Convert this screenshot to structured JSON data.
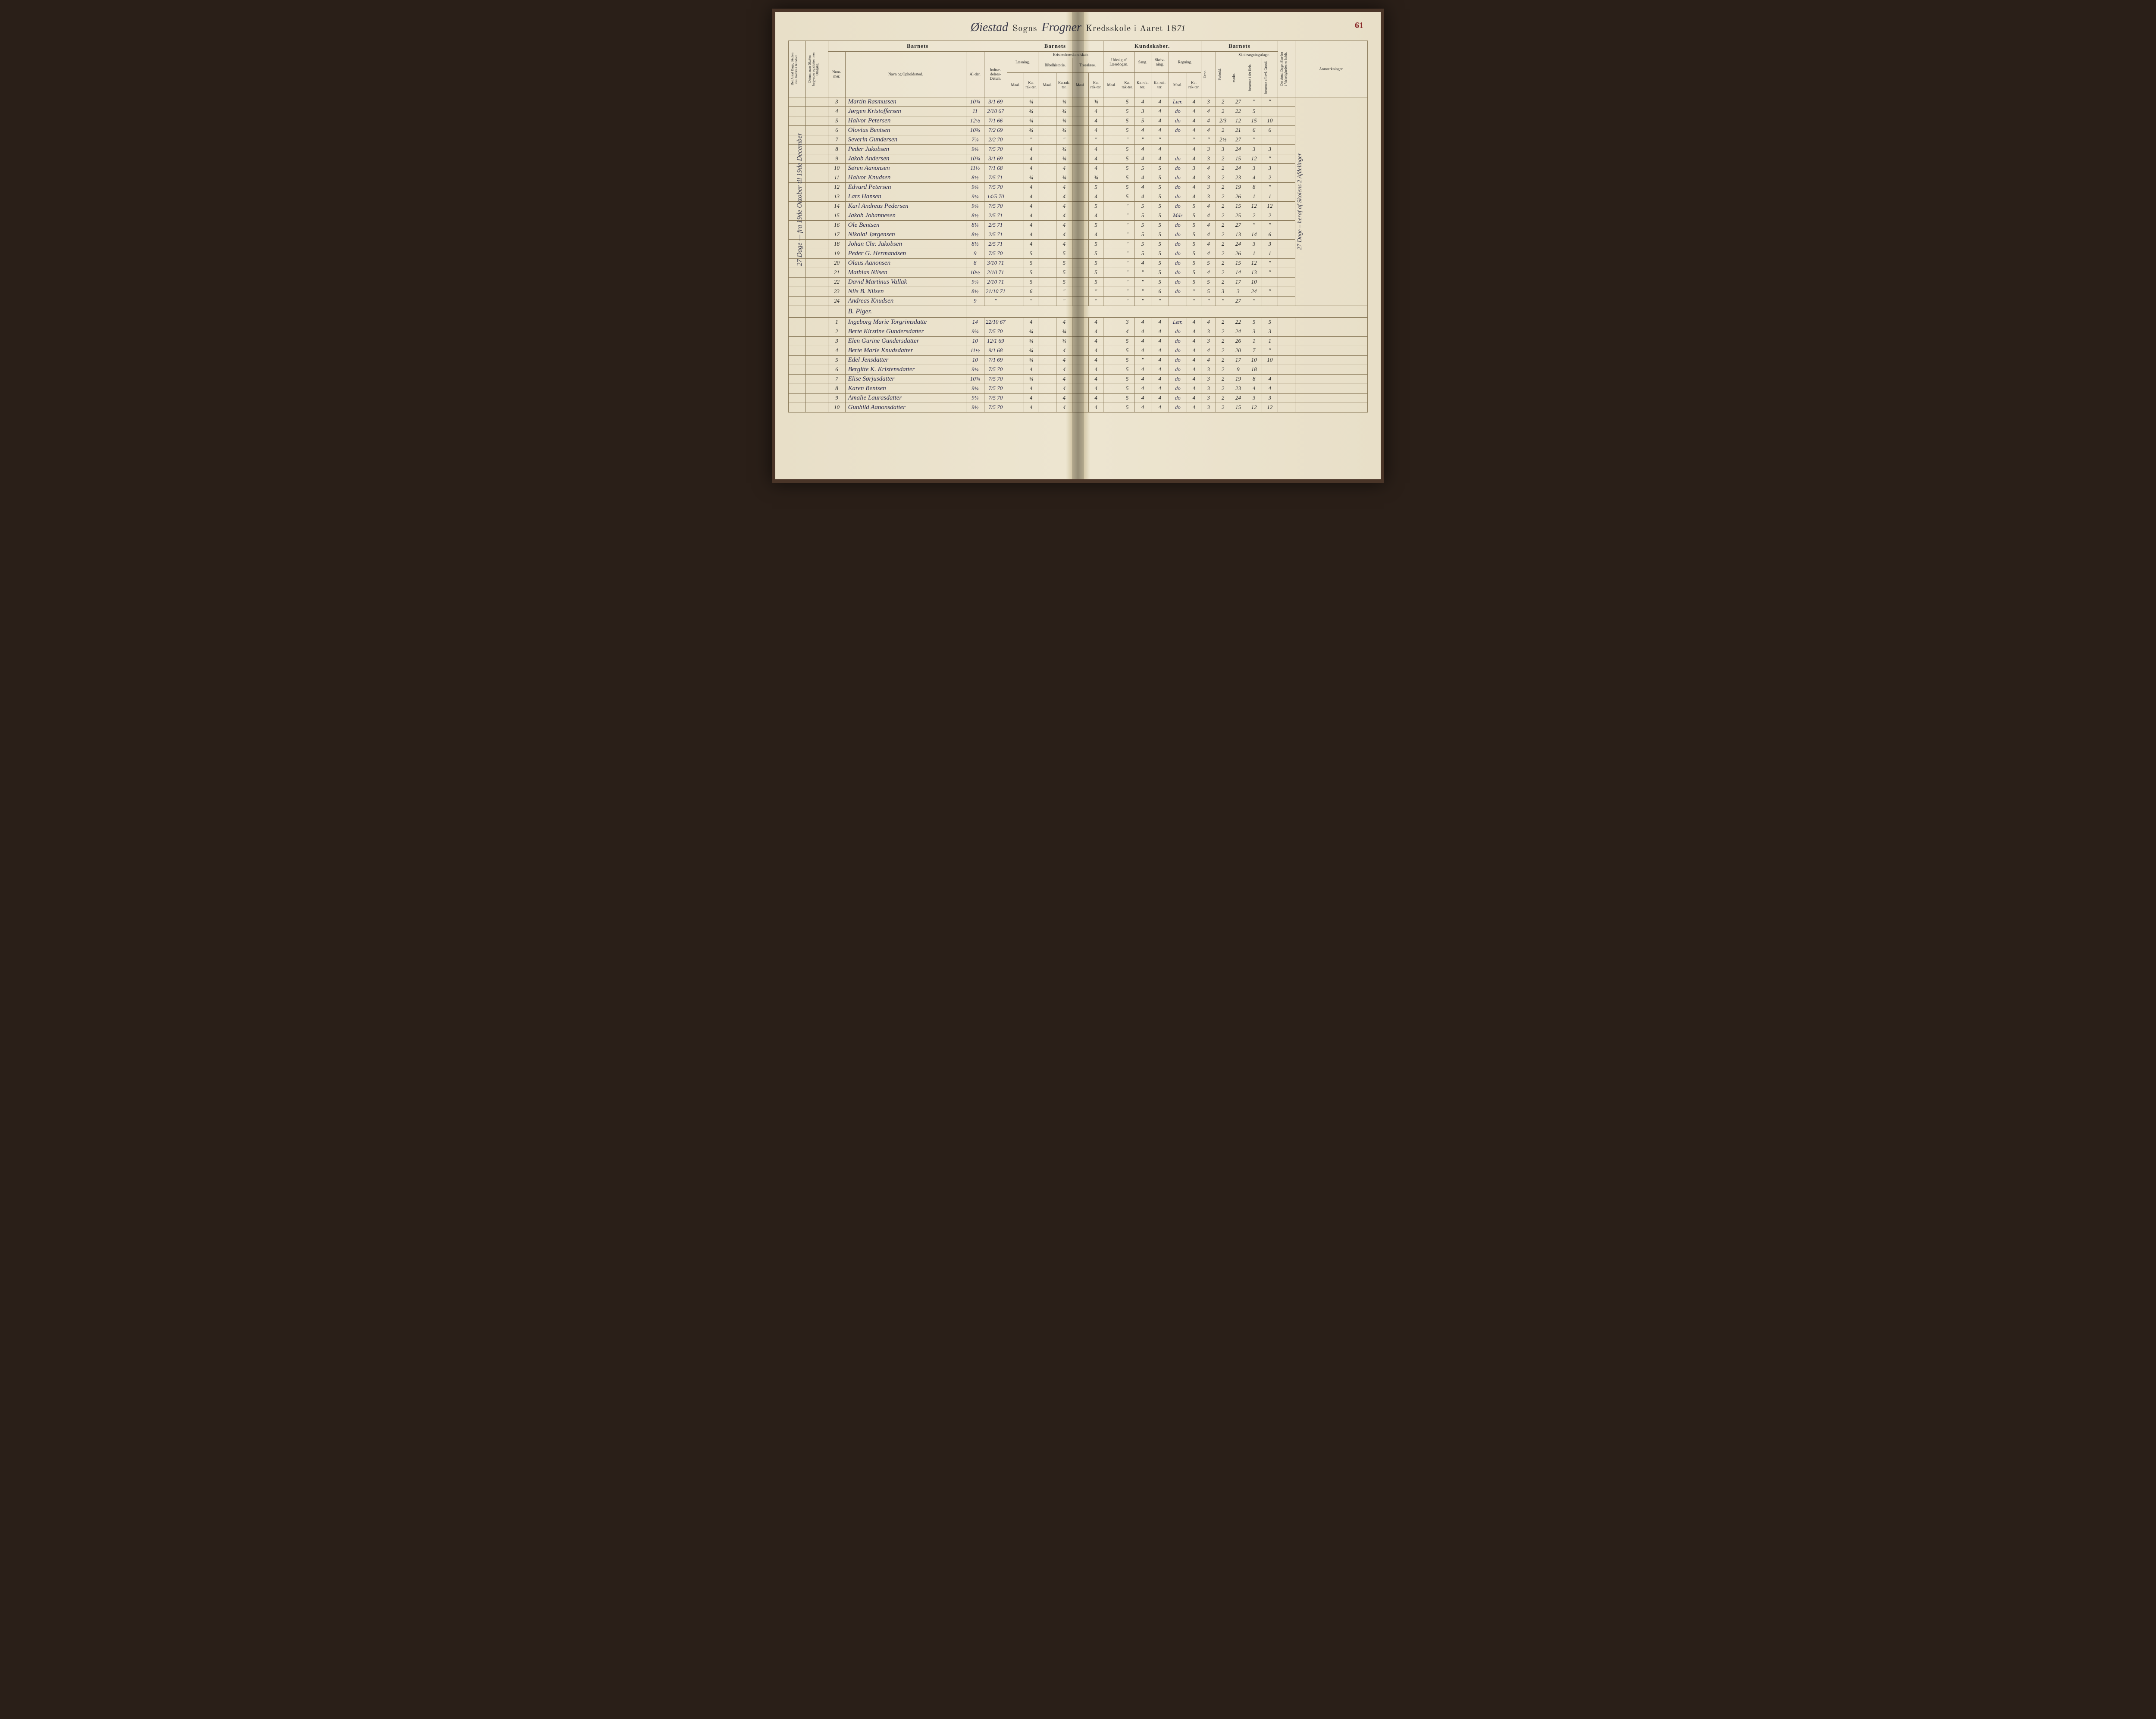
{
  "page_number": "61",
  "title": {
    "parish_script": "Øiestad",
    "sogns": "Sogns",
    "middle_script": "Frogner",
    "kredsskole": "Kredsskole i Aaret 18",
    "year_suffix": "71"
  },
  "headers": {
    "vert1": "Det Antal Dage, Skolen skal holdes i Kredsen.",
    "vert2": "Datum, naar Skolen begynder og slutter hver Omgang.",
    "barnets1": "Barnets",
    "nummer": "Num-mer.",
    "navn": "Navn og Opholdssted.",
    "alder": "Al-der.",
    "indtr": "Indtræ-delses-Datum.",
    "barnets2": "Barnets",
    "laesning": "Læsning.",
    "kristendom": "Kristendomskundskab.",
    "bibel": "Bibelhistorie.",
    "troes": "Troeslære.",
    "maal": "Maal.",
    "karakter": "Ka-rak-ter.",
    "kundskaber": "Kundskaber.",
    "udvalg": "Udvalg af Læsebogen.",
    "sang": "Sang.",
    "skriv": "Skriv-ning.",
    "regning": "Regning.",
    "barnets3": "Barnets",
    "evne": "Evne.",
    "forhold": "Forhold.",
    "skolesog": "Skolesøgningsdage.",
    "modte": "mødte.",
    "fors_hele": "forsømte i det Hele.",
    "fors_lov": "forsømte af lovl. Grund.",
    "antal_holdt": "Det Antal Dage, Sko-len i Virkeligheden er holdt.",
    "anm": "Anmærkninger."
  },
  "side_note": "27 Dage  —  fra 19de Oktober til 19de December",
  "section_b": "B. Piger.",
  "right_note": "27 Dage – heraf af Skolens 2 Afdelinger",
  "rows": [
    {
      "n": "3",
      "name": "Martin Rasmussen",
      "alder": "10¾",
      "dat": "3/1 69",
      "l_m": "",
      "l_k": "¾",
      "b_m": "",
      "b_k": "¾",
      "t_m": "",
      "t_k": "¾",
      "u_m": "",
      "u_k": "5",
      "sa": "4",
      "sk": "4",
      "r_m": "Lær.",
      "r_k": "4",
      "ev": "3",
      "fo": "2",
      "mo": "27",
      "fh": "\"",
      "fl": "\"",
      "an": ""
    },
    {
      "n": "4",
      "name": "Jørgen Kristoffersen",
      "alder": "11",
      "dat": "2/10 67",
      "l_m": "",
      "l_k": "¾",
      "b_m": "",
      "b_k": "¾",
      "t_m": "",
      "t_k": "4",
      "u_m": "",
      "u_k": "5",
      "sa": "3",
      "sk": "4",
      "r_m": "do",
      "r_k": "4",
      "ev": "4",
      "fo": "2",
      "mo": "22",
      "fh": "5",
      "fl": "",
      "an": ""
    },
    {
      "n": "5",
      "name": "Halvor Petersen",
      "alder": "12½",
      "dat": "7/1 66",
      "l_m": "",
      "l_k": "¾",
      "b_m": "",
      "b_k": "¾",
      "t_m": "",
      "t_k": "4",
      "u_m": "",
      "u_k": "5",
      "sa": "5",
      "sk": "4",
      "r_m": "do",
      "r_k": "4",
      "ev": "4",
      "fo": "2/3",
      "mo": "12",
      "fh": "15",
      "fl": "10",
      "an": ""
    },
    {
      "n": "6",
      "name": "Olovius Bentsen",
      "alder": "10¾",
      "dat": "7/2 69",
      "l_m": "",
      "l_k": "¾",
      "b_m": "",
      "b_k": "¾",
      "t_m": "",
      "t_k": "4",
      "u_m": "",
      "u_k": "5",
      "sa": "4",
      "sk": "4",
      "r_m": "do",
      "r_k": "4",
      "ev": "4",
      "fo": "2",
      "mo": "21",
      "fh": "6",
      "fl": "6",
      "an": ""
    },
    {
      "n": "7",
      "name": "Severin Gundersen",
      "alder": "7¾",
      "dat": "2/2 70",
      "l_m": "",
      "l_k": "\"",
      "b_m": "",
      "b_k": "\"",
      "t_m": "",
      "t_k": "\"",
      "u_m": "",
      "u_k": "\"",
      "sa": "\"",
      "sk": "\"",
      "r_m": "",
      "r_k": "\"",
      "ev": "\"",
      "fo": "2½",
      "mo": "27",
      "fh": "\"",
      "fl": "",
      "an": ""
    },
    {
      "n": "8",
      "name": "Peder Jakobsen",
      "alder": "9¾",
      "dat": "7/5 70",
      "l_m": "",
      "l_k": "4",
      "b_m": "",
      "b_k": "¾",
      "t_m": "",
      "t_k": "4",
      "u_m": "",
      "u_k": "5",
      "sa": "4",
      "sk": "4",
      "r_m": "",
      "r_k": "4",
      "ev": "3",
      "fo": "3",
      "mo": "24",
      "fh": "3",
      "fl": "3",
      "an": ""
    },
    {
      "n": "9",
      "name": "Jakob Andersen",
      "alder": "10¾",
      "dat": "3/1 69",
      "l_m": "",
      "l_k": "4",
      "b_m": "",
      "b_k": "¾",
      "t_m": "",
      "t_k": "4",
      "u_m": "",
      "u_k": "5",
      "sa": "4",
      "sk": "4",
      "r_m": "do",
      "r_k": "4",
      "ev": "3",
      "fo": "2",
      "mo": "15",
      "fh": "12",
      "fl": "\"",
      "an": ""
    },
    {
      "n": "10",
      "name": "Søren Aanonsen",
      "alder": "11½",
      "dat": "7/1 68",
      "l_m": "",
      "l_k": "4",
      "b_m": "",
      "b_k": "4",
      "t_m": "",
      "t_k": "4",
      "u_m": "",
      "u_k": "5",
      "sa": "5",
      "sk": "5",
      "r_m": "do",
      "r_k": "3",
      "ev": "4",
      "fo": "2",
      "mo": "24",
      "fh": "3",
      "fl": "3",
      "an": ""
    },
    {
      "n": "11",
      "name": "Halvor Knudsen",
      "alder": "8½",
      "dat": "7/5 71",
      "l_m": "",
      "l_k": "¾",
      "b_m": "",
      "b_k": "¾",
      "t_m": "",
      "t_k": "¾",
      "u_m": "",
      "u_k": "5",
      "sa": "4",
      "sk": "5",
      "r_m": "do",
      "r_k": "4",
      "ev": "3",
      "fo": "2",
      "mo": "23",
      "fh": "4",
      "fl": "2",
      "an": ""
    },
    {
      "n": "12",
      "name": "Edvard Petersen",
      "alder": "9¾",
      "dat": "7/5 70",
      "l_m": "",
      "l_k": "4",
      "b_m": "",
      "b_k": "4",
      "t_m": "",
      "t_k": "5",
      "u_m": "",
      "u_k": "5",
      "sa": "4",
      "sk": "5",
      "r_m": "do",
      "r_k": "4",
      "ev": "3",
      "fo": "2",
      "mo": "19",
      "fh": "8",
      "fl": "\"",
      "an": ""
    },
    {
      "n": "13",
      "name": "Lars Hansen",
      "alder": "9¼",
      "dat": "14/5 70",
      "l_m": "",
      "l_k": "4",
      "b_m": "",
      "b_k": "4",
      "t_m": "",
      "t_k": "4",
      "u_m": "",
      "u_k": "5",
      "sa": "4",
      "sk": "5",
      "r_m": "do",
      "r_k": "4",
      "ev": "3",
      "fo": "2",
      "mo": "26",
      "fh": "1",
      "fl": "1",
      "an": ""
    },
    {
      "n": "14",
      "name": "Karl Andreas Pedersen",
      "alder": "9¾",
      "dat": "7/5 70",
      "l_m": "",
      "l_k": "4",
      "b_m": "",
      "b_k": "4",
      "t_m": "",
      "t_k": "5",
      "u_m": "",
      "u_k": "\"",
      "sa": "5",
      "sk": "5",
      "r_m": "do",
      "r_k": "5",
      "ev": "4",
      "fo": "2",
      "mo": "15",
      "fh": "12",
      "fl": "12",
      "an": ""
    },
    {
      "n": "15",
      "name": "Jakob Johannesen",
      "alder": "8½",
      "dat": "2/5 71",
      "l_m": "",
      "l_k": "4",
      "b_m": "",
      "b_k": "4",
      "t_m": "",
      "t_k": "4",
      "u_m": "",
      "u_k": "\"",
      "sa": "5",
      "sk": "5",
      "r_m": "Mdr",
      "r_k": "5",
      "ev": "4",
      "fo": "2",
      "mo": "25",
      "fh": "2",
      "fl": "2",
      "an": ""
    },
    {
      "n": "16",
      "name": "Ole Bentsen",
      "alder": "8¼",
      "dat": "2/5 71",
      "l_m": "",
      "l_k": "4",
      "b_m": "",
      "b_k": "4",
      "t_m": "",
      "t_k": "5",
      "u_m": "",
      "u_k": "\"",
      "sa": "5",
      "sk": "5",
      "r_m": "do",
      "r_k": "5",
      "ev": "4",
      "fo": "2",
      "mo": "27",
      "fh": "\"",
      "fl": "\"",
      "an": ""
    },
    {
      "n": "17",
      "name": "Nikolai Jørgensen",
      "alder": "8½",
      "dat": "2/5 71",
      "l_m": "",
      "l_k": "4",
      "b_m": "",
      "b_k": "4",
      "t_m": "",
      "t_k": "4",
      "u_m": "",
      "u_k": "\"",
      "sa": "5",
      "sk": "5",
      "r_m": "do",
      "r_k": "5",
      "ev": "4",
      "fo": "2",
      "mo": "13",
      "fh": "14",
      "fl": "6",
      "an": ""
    },
    {
      "n": "18",
      "name": "Johan Chr. Jakobsen",
      "alder": "8½",
      "dat": "2/5 71",
      "l_m": "",
      "l_k": "4",
      "b_m": "",
      "b_k": "4",
      "t_m": "",
      "t_k": "5",
      "u_m": "",
      "u_k": "\"",
      "sa": "5",
      "sk": "5",
      "r_m": "do",
      "r_k": "5",
      "ev": "4",
      "fo": "2",
      "mo": "24",
      "fh": "3",
      "fl": "3",
      "an": ""
    },
    {
      "n": "19",
      "name": "Peder G. Hermandsen",
      "alder": "9",
      "dat": "7/5 70",
      "l_m": "",
      "l_k": "5",
      "b_m": "",
      "b_k": "5",
      "t_m": "",
      "t_k": "5",
      "u_m": "",
      "u_k": "\"",
      "sa": "5",
      "sk": "5",
      "r_m": "do",
      "r_k": "5",
      "ev": "4",
      "fo": "2",
      "mo": "26",
      "fh": "1",
      "fl": "1",
      "an": ""
    },
    {
      "n": "20",
      "name": "Olaus Aanonsen",
      "alder": "8",
      "dat": "3/10 71",
      "l_m": "",
      "l_k": "5",
      "b_m": "",
      "b_k": "5",
      "t_m": "",
      "t_k": "5",
      "u_m": "",
      "u_k": "\"",
      "sa": "4",
      "sk": "5",
      "r_m": "do",
      "r_k": "5",
      "ev": "5",
      "fo": "2",
      "mo": "15",
      "fh": "12",
      "fl": "\"",
      "an": ""
    },
    {
      "n": "21",
      "name": "Mathias Nilsen",
      "alder": "10½",
      "dat": "2/10 71",
      "l_m": "",
      "l_k": "5",
      "b_m": "",
      "b_k": "5",
      "t_m": "",
      "t_k": "5",
      "u_m": "",
      "u_k": "\"",
      "sa": "\"",
      "sk": "5",
      "r_m": "do",
      "r_k": "5",
      "ev": "4",
      "fo": "2",
      "mo": "14",
      "fh": "13",
      "fl": "\"",
      "an": ""
    },
    {
      "n": "22",
      "name": "David Martinus Vallak",
      "alder": "9¾",
      "dat": "2/10 71",
      "l_m": "",
      "l_k": "5",
      "b_m": "",
      "b_k": "5",
      "t_m": "",
      "t_k": "5",
      "u_m": "",
      "u_k": "\"",
      "sa": "\"",
      "sk": "5",
      "r_m": "do",
      "r_k": "5",
      "ev": "5",
      "fo": "2",
      "mo": "17",
      "fh": "10",
      "fl": "",
      "an": ""
    },
    {
      "n": "23",
      "name": "Nils B. Nilsen",
      "alder": "8½",
      "dat": "21/10 71",
      "l_m": "",
      "l_k": "6",
      "b_m": "",
      "b_k": "\"",
      "t_m": "",
      "t_k": "\"",
      "u_m": "",
      "u_k": "\"",
      "sa": "\"",
      "sk": "6",
      "r_m": "do",
      "r_k": "\"",
      "ev": "5",
      "fo": "3",
      "mo": "3",
      "fh": "24",
      "fl": "\"",
      "an": ""
    },
    {
      "n": "24",
      "name": "Andreas Knudsen",
      "alder": "9",
      "dat": "\"",
      "l_m": "",
      "l_k": "\"",
      "b_m": "",
      "b_k": "\"",
      "t_m": "",
      "t_k": "\"",
      "u_m": "",
      "u_k": "\"",
      "sa": "\"",
      "sk": "\"",
      "r_m": "",
      "r_k": "\"",
      "ev": "\"",
      "fo": "\"",
      "mo": "27",
      "fh": "\"",
      "fl": "",
      "an": ""
    }
  ],
  "rows_b": [
    {
      "n": "1",
      "name": "Ingeborg Marie Torgrimsdatte",
      "alder": "14",
      "dat": "22/10 67",
      "l_m": "",
      "l_k": "4",
      "b_m": "",
      "b_k": "4",
      "t_m": "",
      "t_k": "4",
      "u_m": "",
      "u_k": "3",
      "sa": "4",
      "sk": "4",
      "r_m": "Lær.",
      "r_k": "4",
      "ev": "4",
      "fo": "2",
      "mo": "22",
      "fh": "5",
      "fl": "5",
      "an": ""
    },
    {
      "n": "2",
      "name": "Berte Kirstine Gundersdatter",
      "alder": "9¾",
      "dat": "7/5 70",
      "l_m": "",
      "l_k": "¾",
      "b_m": "",
      "b_k": "¾",
      "t_m": "",
      "t_k": "4",
      "u_m": "",
      "u_k": "4",
      "sa": "4",
      "sk": "4",
      "r_m": "do",
      "r_k": "4",
      "ev": "3",
      "fo": "2",
      "mo": "24",
      "fh": "3",
      "fl": "3",
      "an": ""
    },
    {
      "n": "3",
      "name": "Elen Gurine Gundersdatter",
      "alder": "10",
      "dat": "12/1 69",
      "l_m": "",
      "l_k": "¾",
      "b_m": "",
      "b_k": "¾",
      "t_m": "",
      "t_k": "4",
      "u_m": "",
      "u_k": "5",
      "sa": "4",
      "sk": "4",
      "r_m": "do",
      "r_k": "4",
      "ev": "3",
      "fo": "2",
      "mo": "26",
      "fh": "1",
      "fl": "1",
      "an": ""
    },
    {
      "n": "4",
      "name": "Berte Marie Knudsdatter",
      "alder": "11½",
      "dat": "9/1 68",
      "l_m": "",
      "l_k": "¾",
      "b_m": "",
      "b_k": "4",
      "t_m": "",
      "t_k": "4",
      "u_m": "",
      "u_k": "5",
      "sa": "4",
      "sk": "4",
      "r_m": "do",
      "r_k": "4",
      "ev": "4",
      "fo": "2",
      "mo": "20",
      "fh": "7",
      "fl": "\"",
      "an": ""
    },
    {
      "n": "5",
      "name": "Edel Jensdatter",
      "alder": "10",
      "dat": "7/1 69",
      "l_m": "",
      "l_k": "¾",
      "b_m": "",
      "b_k": "4",
      "t_m": "",
      "t_k": "4",
      "u_m": "",
      "u_k": "5",
      "sa": "\"",
      "sk": "4",
      "r_m": "do",
      "r_k": "4",
      "ev": "4",
      "fo": "2",
      "mo": "17",
      "fh": "10",
      "fl": "10",
      "an": ""
    },
    {
      "n": "6",
      "name": "Bergitte K. Kristensdatter",
      "alder": "9¼",
      "dat": "7/5 70",
      "l_m": "",
      "l_k": "4",
      "b_m": "",
      "b_k": "4",
      "t_m": "",
      "t_k": "4",
      "u_m": "",
      "u_k": "5",
      "sa": "4",
      "sk": "4",
      "r_m": "do",
      "r_k": "4",
      "ev": "3",
      "fo": "2",
      "mo": "9",
      "fh": "18",
      "fl": "",
      "an": ""
    },
    {
      "n": "7",
      "name": "Elise Sørjusdatter",
      "alder": "10¾",
      "dat": "7/5 70",
      "l_m": "",
      "l_k": "¾",
      "b_m": "",
      "b_k": "4",
      "t_m": "",
      "t_k": "4",
      "u_m": "",
      "u_k": "5",
      "sa": "4",
      "sk": "4",
      "r_m": "do",
      "r_k": "4",
      "ev": "3",
      "fo": "2",
      "mo": "19",
      "fh": "8",
      "fl": "4",
      "an": ""
    },
    {
      "n": "8",
      "name": "Karen Bentsen",
      "alder": "9¼",
      "dat": "7/5 70",
      "l_m": "",
      "l_k": "4",
      "b_m": "",
      "b_k": "4",
      "t_m": "",
      "t_k": "4",
      "u_m": "",
      "u_k": "5",
      "sa": "4",
      "sk": "4",
      "r_m": "do",
      "r_k": "4",
      "ev": "3",
      "fo": "2",
      "mo": "23",
      "fh": "4",
      "fl": "4",
      "an": ""
    },
    {
      "n": "9",
      "name": "Amalie Laurasdatter",
      "alder": "9¼",
      "dat": "7/5 70",
      "l_m": "",
      "l_k": "4",
      "b_m": "",
      "b_k": "4",
      "t_m": "",
      "t_k": "4",
      "u_m": "",
      "u_k": "5",
      "sa": "4",
      "sk": "4",
      "r_m": "do",
      "r_k": "4",
      "ev": "3",
      "fo": "2",
      "mo": "24",
      "fh": "3",
      "fl": "3",
      "an": ""
    },
    {
      "n": "10",
      "name": "Gunhild Aanonsdatter",
      "alder": "9½",
      "dat": "7/5 70",
      "l_m": "",
      "l_k": "4",
      "b_m": "",
      "b_k": "4",
      "t_m": "",
      "t_k": "4",
      "u_m": "",
      "u_k": "5",
      "sa": "4",
      "sk": "4",
      "r_m": "do",
      "r_k": "4",
      "ev": "3",
      "fo": "2",
      "mo": "15",
      "fh": "12",
      "fl": "12",
      "an": ""
    }
  ]
}
